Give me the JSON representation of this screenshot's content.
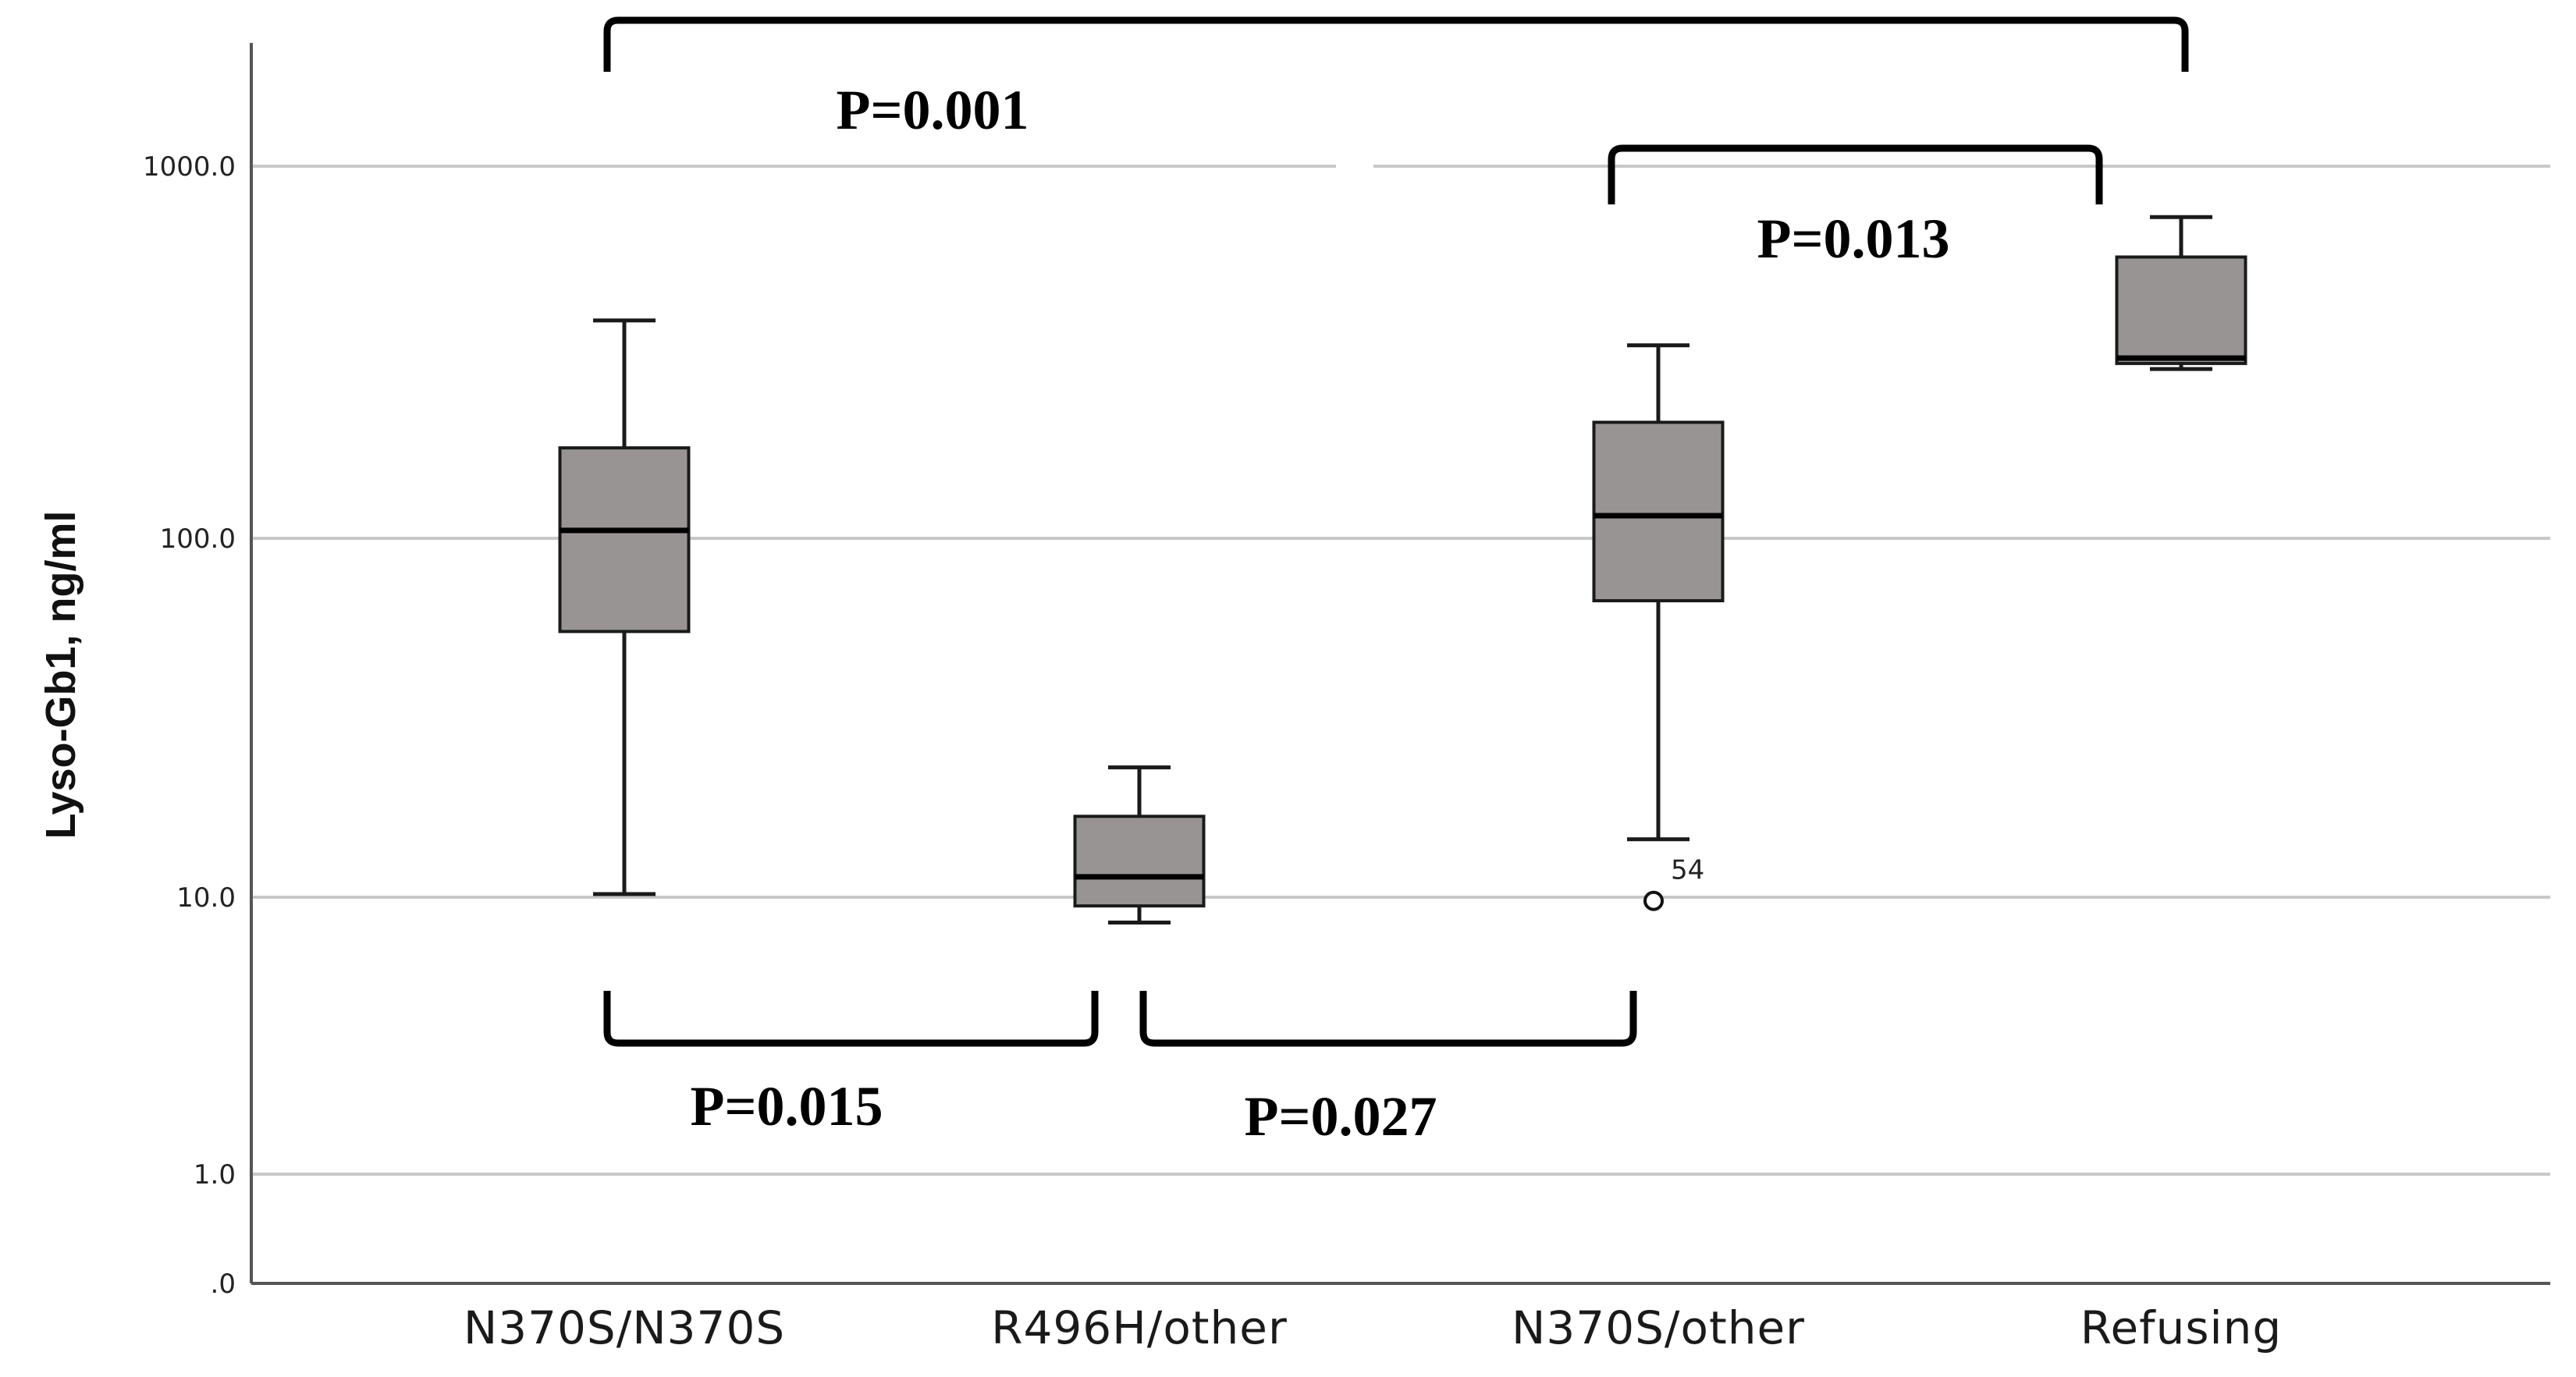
{
  "chart_data": {
    "type": "box",
    "ylabel": "Lyso-Gb1, ng/ml",
    "yscale": "log",
    "ytick_labels": [
      ".0",
      "1.0",
      "10.0",
      "100.0",
      "1000.0"
    ],
    "categories": [
      "N370S/N370S",
      "R496H/other",
      "N370S/other",
      "Refusing"
    ],
    "boxes": [
      {
        "category": "N370S/N370S",
        "whisker_low": 10.2,
        "q1": 55,
        "median": 105,
        "q3": 175,
        "whisker_high": 385
      },
      {
        "category": "R496H/other",
        "whisker_low": 8.1,
        "q1": 9.3,
        "median": 11.4,
        "q3": 16.8,
        "whisker_high": 23
      },
      {
        "category": "N370S/other",
        "whisker_low": 14.5,
        "q1": 67,
        "median": 115,
        "q3": 205,
        "whisker_high": 330
      },
      {
        "category": "Refusing",
        "whisker_low": 285,
        "q1": 295,
        "median": 305,
        "q3": 570,
        "whisker_high": 730
      }
    ],
    "outliers": [
      {
        "category": "N370S/other",
        "value": 9.7,
        "label": "54"
      }
    ],
    "comparisons": [
      {
        "from": "N370S/N370S",
        "to": "Refusing",
        "label": "P=0.001",
        "side": "top"
      },
      {
        "from": "N370S/other",
        "to": "Refusing",
        "label": "P=0.013",
        "side": "top"
      },
      {
        "from": "N370S/N370S",
        "to": "R496H/other",
        "label": "P=0.015",
        "side": "bottom"
      },
      {
        "from": "R496H/other",
        "to": "N370S/other",
        "label": "P=0.027",
        "side": "bottom"
      }
    ],
    "grid": true,
    "colors": {
      "box_fill": "#989493",
      "box_stroke": "#1a1a1a",
      "grid": "#c8c8c8",
      "axis": "#555555"
    }
  }
}
